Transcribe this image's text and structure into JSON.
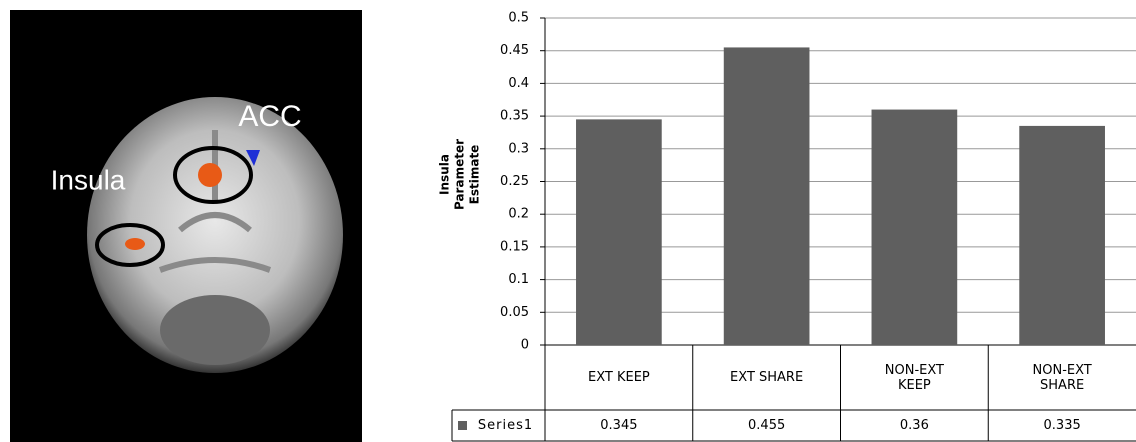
{
  "image": {
    "labels": [
      "ACC",
      "Insula"
    ]
  },
  "chart_data": {
    "type": "bar",
    "ylabel": [
      "Insula",
      "Parameter Estimate"
    ],
    "categories": [
      "EXT KEEP",
      "EXT SHARE",
      "NON-EXT KEEP",
      "NON-EXT SHARE"
    ],
    "series": [
      {
        "name": "Series1",
        "color": "#5f5f5f",
        "values": [
          0.345,
          0.455,
          0.36,
          0.335
        ]
      }
    ],
    "ylim": [
      0,
      0.5
    ],
    "yticks": [
      0,
      0.05,
      0.1,
      0.15,
      0.2,
      0.25,
      0.3,
      0.35,
      0.4,
      0.45,
      0.5
    ],
    "grid": true,
    "data_table": true
  }
}
